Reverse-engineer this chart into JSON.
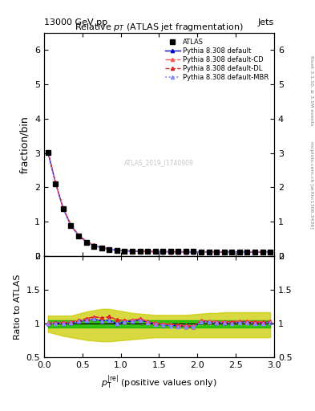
{
  "title": "Relative $p_T$ (ATLAS jet fragmentation)",
  "header_left": "13000 GeV pp",
  "header_right": "Jets",
  "ylabel_main": "fraction/bin",
  "ylabel_ratio": "Ratio to ATLAS",
  "watermark": "ATLAS_2019_I1740909",
  "right_label": "mcplots.cern.ch [arXiv:1306.3436]",
  "right_label2": "Rivet 3.1.10, ≥ 3.1M events",
  "main_xlim": [
    0,
    3
  ],
  "main_ylim": [
    0,
    6.5
  ],
  "ratio_ylim": [
    0.5,
    2.0
  ],
  "main_x_data": [
    0.05,
    0.15,
    0.25,
    0.35,
    0.45,
    0.55,
    0.65,
    0.75,
    0.85,
    0.95,
    1.05,
    1.15,
    1.25,
    1.35,
    1.45,
    1.55,
    1.65,
    1.75,
    1.85,
    1.95,
    2.05,
    2.15,
    2.25,
    2.35,
    2.45,
    2.55,
    2.65,
    2.75,
    2.85,
    2.95
  ],
  "atlas_y": [
    3.02,
    2.1,
    1.37,
    0.88,
    0.58,
    0.4,
    0.29,
    0.23,
    0.19,
    0.17,
    0.15,
    0.14,
    0.13,
    0.13,
    0.13,
    0.13,
    0.13,
    0.13,
    0.13,
    0.13,
    0.12,
    0.12,
    0.12,
    0.12,
    0.12,
    0.12,
    0.12,
    0.12,
    0.12,
    0.12
  ],
  "atlas_yerr": [
    0.06,
    0.04,
    0.03,
    0.02,
    0.015,
    0.01,
    0.008,
    0.006,
    0.005,
    0.004,
    0.004,
    0.003,
    0.003,
    0.003,
    0.003,
    0.003,
    0.003,
    0.003,
    0.003,
    0.003,
    0.003,
    0.003,
    0.003,
    0.003,
    0.003,
    0.003,
    0.003,
    0.003,
    0.003,
    0.003
  ],
  "py_def_y": [
    3.03,
    2.12,
    1.38,
    0.89,
    0.6,
    0.42,
    0.31,
    0.24,
    0.2,
    0.17,
    0.155,
    0.145,
    0.138,
    0.133,
    0.13,
    0.128,
    0.127,
    0.126,
    0.125,
    0.124,
    0.124,
    0.123,
    0.122,
    0.122,
    0.122,
    0.123,
    0.123,
    0.122,
    0.122,
    0.123
  ],
  "py_cd_y": [
    3.05,
    2.14,
    1.4,
    0.91,
    0.61,
    0.43,
    0.32,
    0.25,
    0.21,
    0.18,
    0.158,
    0.148,
    0.14,
    0.135,
    0.132,
    0.13,
    0.129,
    0.128,
    0.127,
    0.126,
    0.126,
    0.125,
    0.124,
    0.124,
    0.124,
    0.125,
    0.125,
    0.124,
    0.124,
    0.125
  ],
  "py_dl_y": [
    3.04,
    2.13,
    1.39,
    0.9,
    0.61,
    0.43,
    0.32,
    0.25,
    0.21,
    0.18,
    0.157,
    0.147,
    0.139,
    0.134,
    0.131,
    0.129,
    0.128,
    0.127,
    0.126,
    0.125,
    0.125,
    0.124,
    0.123,
    0.123,
    0.123,
    0.124,
    0.124,
    0.123,
    0.123,
    0.124
  ],
  "py_mbr_y": [
    3.02,
    2.11,
    1.38,
    0.89,
    0.6,
    0.42,
    0.31,
    0.24,
    0.2,
    0.17,
    0.155,
    0.145,
    0.137,
    0.132,
    0.129,
    0.128,
    0.126,
    0.125,
    0.125,
    0.124,
    0.123,
    0.123,
    0.122,
    0.122,
    0.121,
    0.122,
    0.122,
    0.121,
    0.121,
    0.122
  ],
  "ratio_def": [
    1.003,
    1.01,
    1.007,
    1.011,
    1.034,
    1.05,
    1.069,
    1.043,
    1.053,
    1.0,
    1.033,
    1.036,
    1.062,
    1.023,
    1.0,
    0.985,
    0.977,
    0.969,
    0.962,
    0.954,
    1.033,
    1.025,
    1.017,
    1.017,
    1.017,
    1.025,
    1.025,
    1.017,
    1.017,
    1.025
  ],
  "ratio_cd": [
    1.01,
    1.019,
    1.022,
    1.023,
    1.052,
    1.075,
    1.103,
    1.087,
    1.105,
    1.059,
    1.053,
    1.057,
    1.077,
    1.038,
    1.015,
    1.0,
    0.992,
    0.985,
    0.977,
    0.969,
    1.05,
    1.042,
    1.033,
    1.033,
    1.033,
    1.042,
    1.042,
    1.033,
    1.033,
    1.042
  ],
  "ratio_dl": [
    1.007,
    1.014,
    1.015,
    1.023,
    1.052,
    1.075,
    1.103,
    1.087,
    1.105,
    1.059,
    1.047,
    1.05,
    1.069,
    1.031,
    1.008,
    0.992,
    0.985,
    0.977,
    0.969,
    0.962,
    1.042,
    1.033,
    1.025,
    1.025,
    1.025,
    1.033,
    1.033,
    1.025,
    1.025,
    1.033
  ],
  "ratio_mbr": [
    1.0,
    1.005,
    1.007,
    1.011,
    1.034,
    1.05,
    1.069,
    1.043,
    1.053,
    1.0,
    1.033,
    1.036,
    1.054,
    1.015,
    0.992,
    0.985,
    0.969,
    0.962,
    0.962,
    0.954,
    1.025,
    1.025,
    1.017,
    1.017,
    1.008,
    1.017,
    1.017,
    1.008,
    1.008,
    1.017
  ],
  "green_upper": 1.05,
  "green_lower": 0.95,
  "yellow_upper": [
    1.12,
    1.12,
    1.12,
    1.12,
    1.15,
    1.18,
    1.2,
    1.22,
    1.22,
    1.2,
    1.18,
    1.16,
    1.15,
    1.14,
    1.13,
    1.13,
    1.13,
    1.13,
    1.13,
    1.14,
    1.15,
    1.16,
    1.16,
    1.17,
    1.17,
    1.17,
    1.17,
    1.17,
    1.17,
    1.17
  ],
  "yellow_lower": [
    0.88,
    0.85,
    0.82,
    0.8,
    0.78,
    0.76,
    0.75,
    0.74,
    0.74,
    0.75,
    0.76,
    0.77,
    0.78,
    0.79,
    0.8,
    0.8,
    0.8,
    0.8,
    0.8,
    0.8,
    0.8,
    0.8,
    0.8,
    0.8,
    0.8,
    0.8,
    0.8,
    0.8,
    0.8,
    0.8
  ],
  "col_blue": "#0000cc",
  "col_red_cd": "#ff5555",
  "col_red_dl": "#dd2222",
  "col_mbr": "#8888ff",
  "col_atlas": "#000000",
  "col_green": "#00bb00",
  "col_yellow": "#cccc00",
  "main_yticks": [
    0,
    1,
    2,
    3,
    4,
    5,
    6
  ],
  "ratio_yticks": [
    0.5,
    1.0,
    1.5,
    2.0
  ],
  "ratio_yticklabels": [
    "0.5",
    "1",
    "1.5",
    "2"
  ]
}
